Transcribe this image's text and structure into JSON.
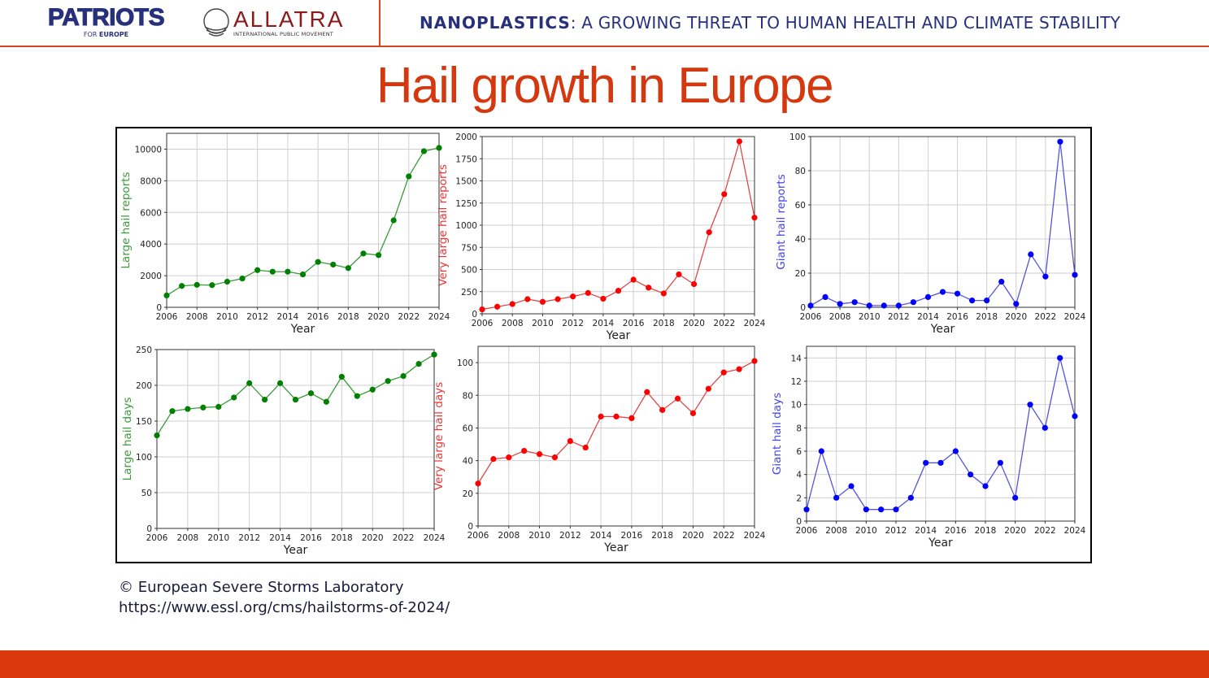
{
  "header": {
    "logo_patriots": "PATRIOTS",
    "logo_patriots_sub_for": "FOR",
    "logo_patriots_sub_europe": "EUROPE",
    "logo_allatra": "ALLATRA",
    "logo_allatra_sub": "INTERNATIONAL PUBLIC MOVEMENT",
    "title_bold": "NANOPLASTICS",
    "title_rest": ": A GROWING THREAT TO HUMAN HEALTH AND CLIMATE STABILITY"
  },
  "main_title": "Hail growth in Europe",
  "credit": {
    "line1": "© European Severe Storms Laboratory",
    "line2": "https://www.essl.org/cms/hailstorms-of-2024/"
  },
  "colors": {
    "accent": "#d4380f",
    "navy": "#27307a",
    "green": "#008000",
    "red": "#ff0000",
    "blue": "#0000ff"
  },
  "chart_data": [
    {
      "type": "line",
      "title": "",
      "xlabel": "Year",
      "ylabel": "Large hail reports",
      "color": "#008000",
      "label_color": "#3a9a3a",
      "x": [
        2006,
        2007,
        2008,
        2009,
        2010,
        2011,
        2012,
        2013,
        2014,
        2015,
        2016,
        2017,
        2018,
        2019,
        2020,
        2021,
        2022,
        2023,
        2024
      ],
      "values": [
        750,
        1350,
        1420,
        1400,
        1620,
        1820,
        2350,
        2250,
        2250,
        2080,
        2870,
        2700,
        2480,
        3400,
        3300,
        5500,
        8280,
        9870,
        10080
      ],
      "xlim": [
        2006,
        2024
      ],
      "ylim": [
        0,
        11000
      ],
      "yticks": [
        0,
        2000,
        4000,
        6000,
        8000,
        10000
      ],
      "xticks": [
        2006,
        2008,
        2010,
        2012,
        2014,
        2016,
        2018,
        2020,
        2022,
        2024
      ],
      "grid": true
    },
    {
      "type": "line",
      "title": "",
      "xlabel": "Year",
      "ylabel": "Very large hail reports",
      "color": "#ff0000",
      "label_color": "#ee3333",
      "x": [
        2006,
        2007,
        2008,
        2009,
        2010,
        2011,
        2012,
        2013,
        2014,
        2015,
        2016,
        2017,
        2018,
        2019,
        2020,
        2021,
        2022,
        2023,
        2024
      ],
      "values": [
        50,
        80,
        110,
        165,
        135,
        165,
        195,
        235,
        170,
        260,
        385,
        295,
        230,
        445,
        335,
        920,
        1350,
        1945,
        1085
      ],
      "xlim": [
        2006,
        2024
      ],
      "ylim": [
        0,
        2000
      ],
      "yticks": [
        0,
        250,
        500,
        750,
        1000,
        1250,
        1500,
        1750,
        2000
      ],
      "xticks": [
        2006,
        2008,
        2010,
        2012,
        2014,
        2016,
        2018,
        2020,
        2022,
        2024
      ],
      "grid": true
    },
    {
      "type": "line",
      "title": "",
      "xlabel": "Year",
      "ylabel": "Giant hail reports",
      "color": "#0000ff",
      "label_color": "#4444ee",
      "x": [
        2006,
        2007,
        2008,
        2009,
        2010,
        2011,
        2012,
        2013,
        2014,
        2015,
        2016,
        2017,
        2018,
        2019,
        2020,
        2021,
        2022,
        2023,
        2024
      ],
      "values": [
        1,
        6,
        2,
        3,
        1,
        1,
        1,
        3,
        6,
        9,
        8,
        4,
        4,
        15,
        2,
        31,
        18,
        97,
        19
      ],
      "xlim": [
        2006,
        2024
      ],
      "ylim": [
        0,
        100
      ],
      "yticks": [
        0,
        20,
        40,
        60,
        80,
        100
      ],
      "xticks": [
        2006,
        2008,
        2010,
        2012,
        2014,
        2016,
        2018,
        2020,
        2022,
        2024
      ],
      "grid": true
    },
    {
      "type": "line",
      "title": "",
      "xlabel": "Year",
      "ylabel": "Large hail days",
      "color": "#008000",
      "label_color": "#3a9a3a",
      "x": [
        2006,
        2007,
        2008,
        2009,
        2010,
        2011,
        2012,
        2013,
        2014,
        2015,
        2016,
        2017,
        2018,
        2019,
        2020,
        2021,
        2022,
        2023,
        2024
      ],
      "values": [
        130,
        164,
        167,
        169,
        170,
        183,
        203,
        180,
        203,
        180,
        189,
        177,
        212,
        185,
        194,
        206,
        213,
        230,
        243
      ],
      "xlim": [
        2006,
        2024
      ],
      "ylim": [
        0,
        250
      ],
      "yticks": [
        0,
        50,
        100,
        150,
        200,
        250
      ],
      "xticks": [
        2006,
        2008,
        2010,
        2012,
        2014,
        2016,
        2018,
        2020,
        2022,
        2024
      ],
      "grid": true
    },
    {
      "type": "line",
      "title": "",
      "xlabel": "Year",
      "ylabel": "Very large hail days",
      "color": "#ff0000",
      "label_color": "#ee3333",
      "x": [
        2006,
        2007,
        2008,
        2009,
        2010,
        2011,
        2012,
        2013,
        2014,
        2015,
        2016,
        2017,
        2018,
        2019,
        2020,
        2021,
        2022,
        2023,
        2024
      ],
      "values": [
        26,
        41,
        42,
        46,
        44,
        42,
        52,
        48,
        67,
        67,
        66,
        82,
        71,
        78,
        69,
        84,
        94,
        96,
        101
      ],
      "xlim": [
        2006,
        2024
      ],
      "ylim": [
        0,
        110
      ],
      "yticks": [
        0,
        20,
        40,
        60,
        80,
        100
      ],
      "xticks": [
        2006,
        2008,
        2010,
        2012,
        2014,
        2016,
        2018,
        2020,
        2022,
        2024
      ],
      "grid": true
    },
    {
      "type": "line",
      "title": "",
      "xlabel": "Year",
      "ylabel": "Giant hail days",
      "color": "#0000ff",
      "label_color": "#4444ee",
      "x": [
        2006,
        2007,
        2008,
        2009,
        2010,
        2011,
        2012,
        2013,
        2014,
        2015,
        2016,
        2017,
        2018,
        2019,
        2020,
        2021,
        2022,
        2023,
        2024
      ],
      "values": [
        1,
        6,
        2,
        3,
        1,
        1,
        1,
        2,
        5,
        5,
        6,
        4,
        3,
        5,
        2,
        10,
        8,
        14,
        9
      ],
      "xlim": [
        2006,
        2024
      ],
      "ylim": [
        0,
        15
      ],
      "yticks": [
        0,
        2,
        4,
        6,
        8,
        10,
        12,
        14
      ],
      "xticks": [
        2006,
        2008,
        2010,
        2012,
        2014,
        2016,
        2018,
        2020,
        2022,
        2024
      ],
      "grid": true
    }
  ]
}
